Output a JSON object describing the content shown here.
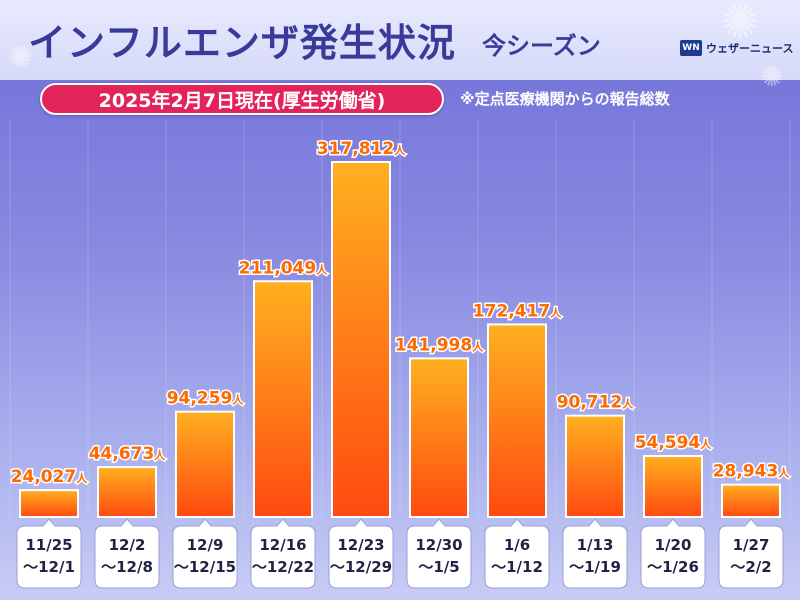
{
  "header": {
    "title": "インフルエンザ発生状況",
    "subtitle": "今シーズン",
    "date_label": "2025年2月7日現在(厚生労働省)",
    "note": "※定点医療機関からの報告総数",
    "logo_mark": "WN",
    "logo_text": "ウェザーニュース"
  },
  "colors": {
    "bar_top": "#ffb020",
    "bar_bottom": "#ff4a10",
    "value_text": "#ff6a00",
    "title": "#3a3a9a",
    "date_pill": "#e3245a"
  },
  "chart_data": {
    "type": "bar",
    "unit": "人",
    "categories": [
      [
        "11/25",
        "〜12/1"
      ],
      [
        "12/2",
        "〜12/8"
      ],
      [
        "12/9",
        "〜12/15"
      ],
      [
        "12/16",
        "〜12/22"
      ],
      [
        "12/23",
        "〜12/29"
      ],
      [
        "12/30",
        "〜1/5"
      ],
      [
        "1/6",
        "〜1/12"
      ],
      [
        "1/13",
        "〜1/19"
      ],
      [
        "1/20",
        "〜1/26"
      ],
      [
        "1/27",
        "〜2/2"
      ]
    ],
    "values": [
      24027,
      44673,
      94259,
      211049,
      317812,
      141998,
      172417,
      90712,
      54594,
      28943
    ],
    "value_labels": [
      "24,027",
      "44,673",
      "94,259",
      "211,049",
      "317,812",
      "141,998",
      "172,417",
      "90,712",
      "54,594",
      "28,943"
    ],
    "ylim": [
      0,
      317812
    ],
    "grid": false,
    "legend": "none"
  }
}
